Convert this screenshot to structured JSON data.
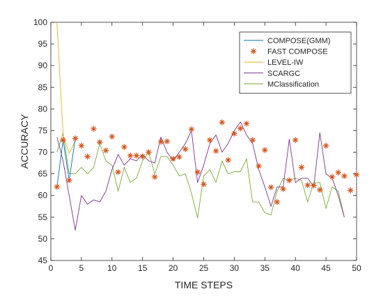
{
  "chart_data": {
    "type": "line",
    "xlabel": "TIME STEPS",
    "ylabel": "ACCURACY",
    "xlim": [
      0,
      50
    ],
    "ylim": [
      45,
      100
    ],
    "xticks": [
      0,
      5,
      10,
      15,
      20,
      25,
      30,
      35,
      40,
      45,
      50
    ],
    "yticks": [
      45,
      50,
      55,
      60,
      65,
      70,
      75,
      80,
      85,
      90,
      95,
      100
    ],
    "grid": false,
    "legend_position": "top-right",
    "series": [
      {
        "name": "COMPOSE(GMM)",
        "color": "#0072BD",
        "style": "line",
        "x": [
          1,
          2,
          3,
          4
        ],
        "values": [
          62,
          72.8,
          63.5,
          73.2
        ]
      },
      {
        "name": "FAST COMPOSE",
        "color": "#D95319",
        "style": "marker",
        "marker": "asterisk",
        "x": [
          1,
          2,
          3,
          4,
          5,
          6,
          7,
          8,
          9,
          10,
          11,
          12,
          13,
          14,
          15,
          16,
          17,
          18,
          19,
          20,
          21,
          22,
          23,
          24,
          25,
          26,
          27,
          28,
          29,
          30,
          31,
          32,
          33,
          34,
          35,
          36,
          37,
          38,
          39,
          40,
          41,
          42,
          43,
          44,
          45,
          46,
          47,
          48,
          49,
          50
        ],
        "values": [
          62,
          72.8,
          63.5,
          73.2,
          71.5,
          69,
          75.4,
          72.3,
          70.4,
          73.6,
          65.4,
          71.2,
          69.2,
          69.2,
          69,
          70,
          64.3,
          72.4,
          72.5,
          68.5,
          68.9,
          70.7,
          75.3,
          65.4,
          62.6,
          72.8,
          70.3,
          76.9,
          68.2,
          74.3,
          75.5,
          76.6,
          72.8,
          66.8,
          70.5,
          61.9,
          58.5,
          61.5,
          63.5,
          72.8,
          66.5,
          62.4,
          62.3,
          61.3,
          71.5,
          64.3,
          65.3,
          64.5,
          61.2,
          64.8
        ]
      },
      {
        "name": "LEVEL-IW",
        "color": "#EDB120",
        "style": "line",
        "x": [
          1,
          2,
          3,
          4
        ],
        "values": [
          100,
          74,
          69.8,
          72.5
        ]
      },
      {
        "name": "SCARGC",
        "color": "#7E2F8E",
        "style": "line",
        "x": [
          1,
          2,
          3,
          4,
          5,
          6,
          7,
          8,
          9,
          10,
          11,
          12,
          13,
          14,
          15,
          16,
          17,
          18,
          19,
          20,
          21,
          22,
          23,
          24,
          25,
          26,
          27,
          28,
          29,
          30,
          31,
          32,
          33,
          34,
          35,
          36,
          37,
          38,
          39,
          40,
          41,
          42,
          43,
          44,
          45,
          46,
          47,
          48
        ],
        "values": [
          73.5,
          68,
          60,
          52,
          60,
          58,
          59,
          58.5,
          61,
          66,
          69.5,
          67,
          68.5,
          68,
          69.5,
          68,
          67.5,
          73.5,
          70,
          68,
          70,
          72,
          75,
          63,
          67,
          72,
          74,
          70,
          72,
          75,
          77,
          74,
          72,
          66,
          62,
          57.5,
          62,
          62,
          73,
          63,
          64,
          64,
          62,
          74.5,
          65,
          64,
          60,
          55
        ]
      },
      {
        "name": "MClassification",
        "color": "#77AC30",
        "style": "line",
        "x": [
          1,
          2,
          3,
          4,
          5,
          6,
          7,
          8,
          9,
          10,
          11,
          12,
          13,
          14,
          15,
          16,
          17,
          18,
          19,
          20,
          21,
          22,
          23,
          24,
          25,
          26,
          27,
          28,
          29,
          30,
          31,
          32,
          33,
          34,
          35,
          36,
          37,
          38,
          39,
          40,
          41,
          42,
          43,
          44,
          45,
          46,
          47,
          48
        ],
        "values": [
          70,
          74.5,
          65,
          65,
          66.5,
          65,
          66.5,
          72,
          68,
          67,
          61,
          66.5,
          63,
          64,
          68,
          70,
          65,
          69,
          69,
          67,
          64.5,
          65,
          60.5,
          54.8,
          64.5,
          66,
          63,
          68,
          65,
          65.5,
          65.5,
          68.5,
          58.5,
          58.5,
          56,
          55.5,
          61,
          64,
          63.5,
          64,
          63.5,
          58.5,
          63,
          63,
          57,
          62,
          61,
          55
        ]
      }
    ]
  }
}
